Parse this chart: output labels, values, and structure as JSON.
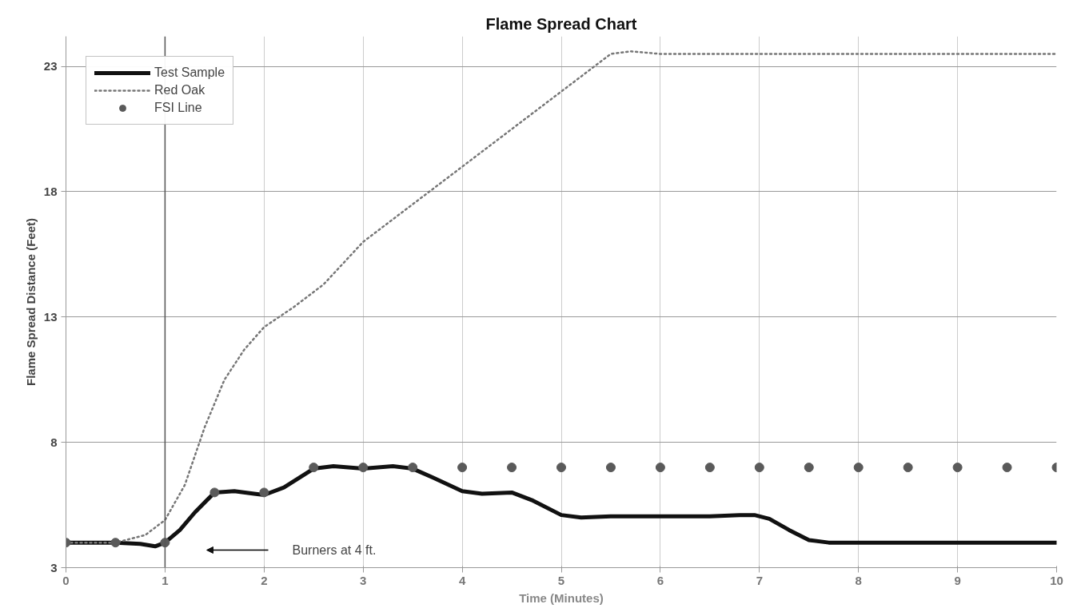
{
  "chart_data": {
    "type": "line",
    "title": "Flame Spread Chart",
    "xlabel": "Time (Minutes)",
    "ylabel": "Flame Spread Distance (Feet)",
    "xlim": [
      0,
      10
    ],
    "ylim": [
      3,
      24.2
    ],
    "xticks": [
      0,
      1,
      2,
      3,
      4,
      5,
      6,
      7,
      8,
      9,
      10
    ],
    "yticks": [
      3,
      8,
      13,
      18,
      23
    ],
    "grid": true,
    "legend": "top left",
    "series": [
      {
        "name": "Test Sample",
        "line_style": "solid",
        "color": "#111111",
        "x": [
          0,
          0.5,
          0.75,
          0.9,
          1,
          1.15,
          1.3,
          1.5,
          1.7,
          1.9,
          2,
          2.2,
          2.5,
          2.7,
          3,
          3.3,
          3.5,
          3.7,
          4,
          4.2,
          4.5,
          4.7,
          5,
          5.2,
          5.5,
          6,
          6.5,
          6.8,
          6.95,
          7.1,
          7.3,
          7.5,
          7.7,
          8,
          9,
          10
        ],
        "values": [
          4,
          4,
          3.95,
          3.85,
          4,
          4.5,
          5.2,
          6,
          6.05,
          5.95,
          5.9,
          6.2,
          6.95,
          7.05,
          6.95,
          7.05,
          6.95,
          6.6,
          6.05,
          5.95,
          6.0,
          5.7,
          5.1,
          5.0,
          5.05,
          5.05,
          5.05,
          5.1,
          5.1,
          4.95,
          4.5,
          4.1,
          4.0,
          4.0,
          4.0,
          4.0
        ]
      },
      {
        "name": "Red Oak",
        "line_style": "dotted",
        "color": "#777777",
        "x": [
          0,
          0.5,
          0.8,
          1,
          1.2,
          1.4,
          1.6,
          1.8,
          2,
          2.3,
          2.6,
          3,
          3.5,
          4,
          4.5,
          5,
          5.3,
          5.5,
          5.7,
          6,
          7,
          8,
          9,
          10
        ],
        "values": [
          4,
          4,
          4.3,
          4.9,
          6.3,
          8.6,
          10.5,
          11.7,
          12.6,
          13.4,
          14.3,
          16,
          17.5,
          19,
          20.5,
          22,
          22.9,
          23.5,
          23.6,
          23.5,
          23.5,
          23.5,
          23.5,
          23.5
        ]
      },
      {
        "name": "FSI Line",
        "type": "scatter",
        "marker": "circle",
        "color": "#5a5a5a",
        "x": [
          0,
          0.5,
          1,
          1.5,
          2,
          2.5,
          3,
          3.5,
          4,
          4.5,
          5,
          5.5,
          6,
          6.5,
          7,
          7.5,
          8,
          8.5,
          9,
          9.5,
          10
        ],
        "values": [
          4,
          4,
          4,
          6,
          6,
          7,
          7,
          7,
          7,
          7,
          7,
          7,
          7,
          7,
          7,
          7,
          7,
          7,
          7,
          7,
          7
        ]
      }
    ],
    "ref_lines": [
      {
        "axis": "x",
        "value": 1,
        "color": "#555555",
        "line_style": "solid"
      }
    ],
    "annotations": [
      "Burners at 4 ft."
    ]
  }
}
